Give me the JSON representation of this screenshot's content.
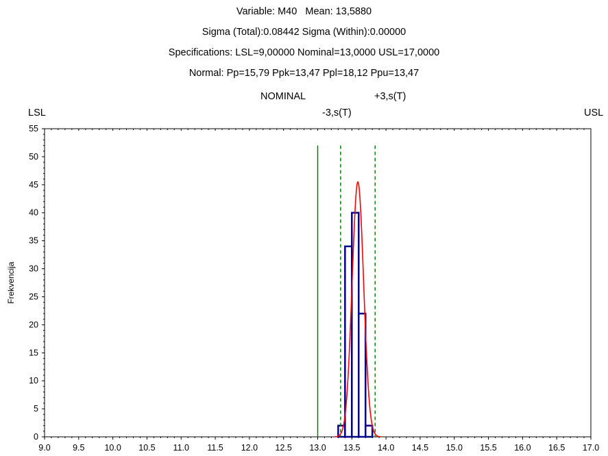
{
  "header": {
    "lines": [
      "Variable: M40   Mean: 13,5880",
      "Sigma (Total):0.08442 Sigma (Within):0.00000",
      "Specifications: LSL=9,00000 Nominal=13,0000 USL=17,0000",
      "Normal: Pp=15,79 Ppk=13,47 Ppl=18,12 Ppu=13,47"
    ]
  },
  "markers": {
    "nominal_label": "NOMINAL",
    "plus3s_label": "+3,s(T)",
    "lsl_label": "LSL",
    "minus3s_label": "-3,s(T)",
    "usl_label": "USL"
  },
  "colors": {
    "bars": "#000080",
    "normal_curve": "#ff0000",
    "nominal_line": "#008000",
    "sigma_lines": "#008000"
  },
  "chart_data": {
    "type": "bar",
    "subtype": "histogram",
    "ylabel": "Frekvencija",
    "xlim": [
      9.0,
      17.0
    ],
    "ylim": [
      0,
      55
    ],
    "xticks": [
      "9.0",
      "9.5",
      "10.0",
      "10.5",
      "11.0",
      "11.5",
      "12.0",
      "12.5",
      "13.0",
      "13.5",
      "14.0",
      "14.5",
      "15.0",
      "15.5",
      "16.0",
      "16.5",
      "17.0"
    ],
    "yticks": [
      "0",
      "5",
      "10",
      "15",
      "20",
      "25",
      "30",
      "35",
      "40",
      "45",
      "50",
      "55"
    ],
    "bin_width": 0.1,
    "bins": [
      {
        "x": 13.35,
        "value": 2
      },
      {
        "x": 13.45,
        "value": 34
      },
      {
        "x": 13.55,
        "value": 40
      },
      {
        "x": 13.65,
        "value": 22
      },
      {
        "x": 13.75,
        "value": 2
      }
    ],
    "reference_lines": {
      "nominal": 13.0,
      "minus3s": 13.335,
      "plus3s": 13.841,
      "lsl": 9.0,
      "usl": 17.0,
      "line_top": 52
    },
    "normal_curve": {
      "mean": 13.588,
      "sigma": 0.08442,
      "peak": 45.5
    },
    "grid": false,
    "legend": "none"
  }
}
